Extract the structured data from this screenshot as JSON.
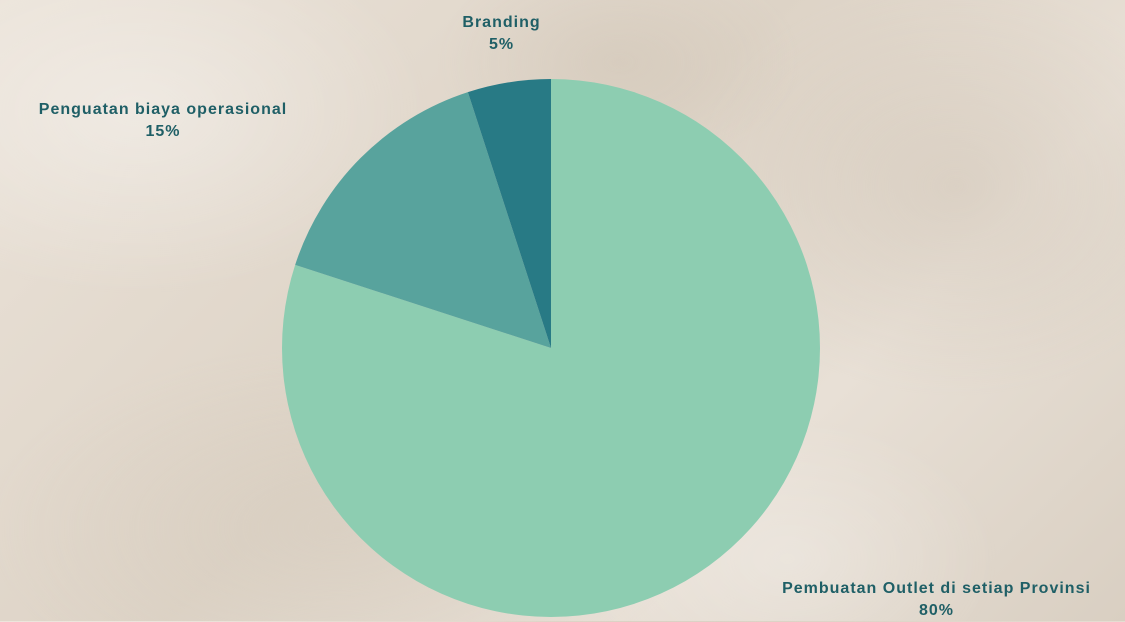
{
  "chart_data": {
    "type": "pie",
    "slices": [
      {
        "label": "Pembuatan Outlet di setiap Provinsi",
        "value": 80,
        "display": "80%",
        "color": "#8dcdb1"
      },
      {
        "label": "Penguatan biaya operasional",
        "value": 15,
        "display": "15%",
        "color": "#58a39d"
      },
      {
        "label": "Branding",
        "value": 5,
        "display": "5%",
        "color": "#287a85"
      }
    ],
    "start_angle_deg": 0,
    "direction": "clockwise",
    "legend": "none",
    "label_color": "#1f5f66"
  }
}
